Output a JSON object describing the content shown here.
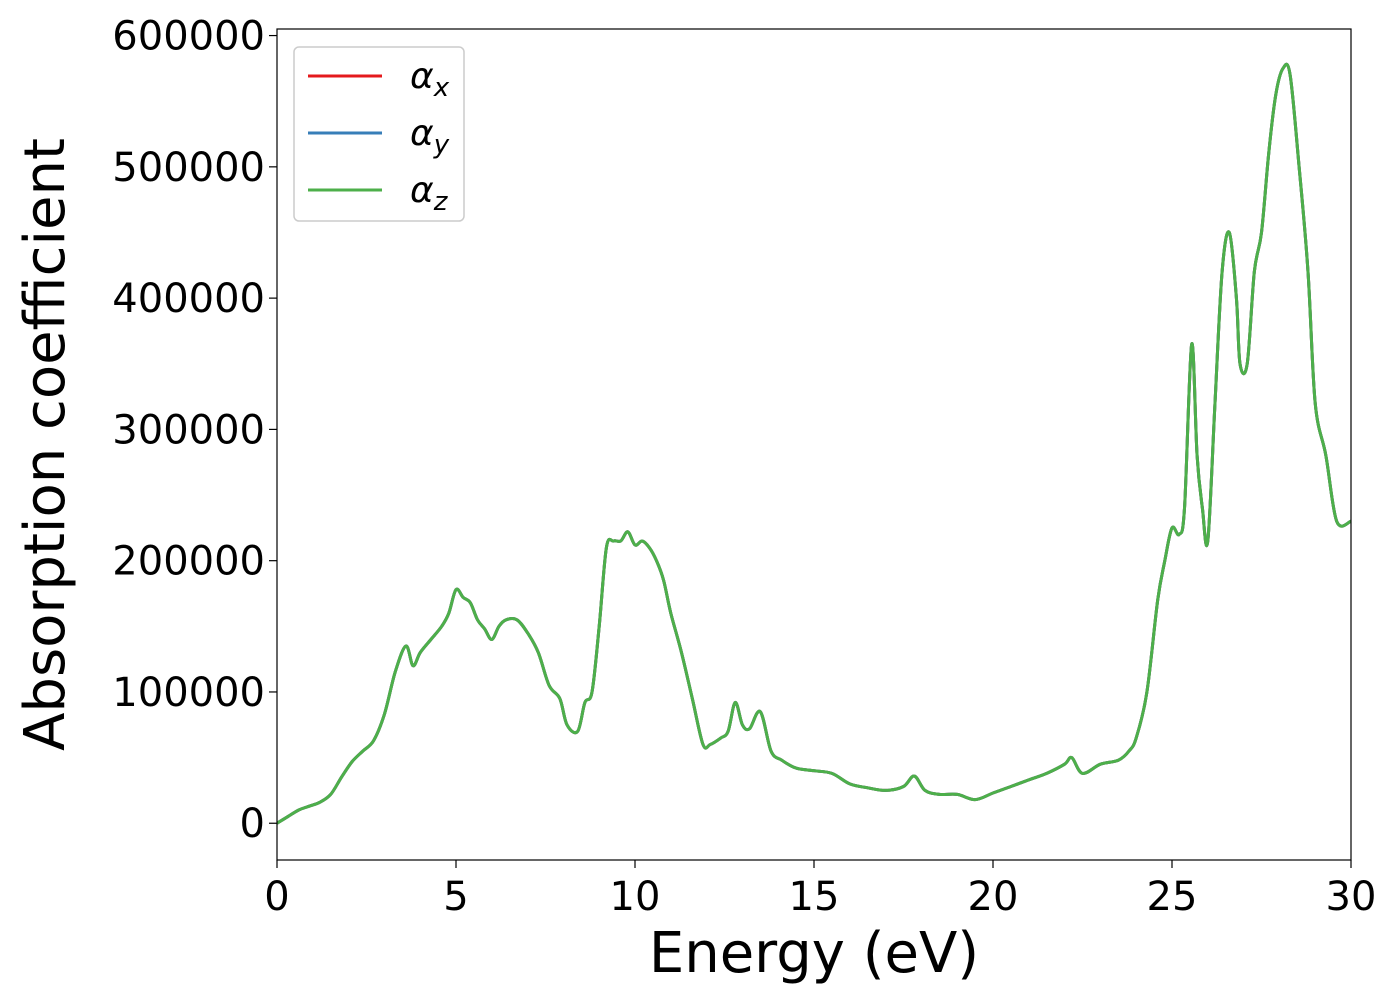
{
  "chart_data": {
    "type": "line",
    "title": "",
    "xlabel": "Energy (eV)",
    "ylabel": "Absorption coefficient",
    "xlim": [
      0,
      30
    ],
    "ylim": [
      -28000,
      605000
    ],
    "xticks": [
      0,
      5,
      10,
      15,
      20,
      25,
      30
    ],
    "yticks": [
      0,
      100000,
      200000,
      300000,
      400000,
      500000,
      600000
    ],
    "grid": false,
    "legend_position": "top-left",
    "series": [
      {
        "name": "α",
        "subscript": "x",
        "color": "#e41a1c"
      },
      {
        "name": "α",
        "subscript": "y",
        "color": "#377eb8"
      },
      {
        "name": "α",
        "subscript": "z",
        "color": "#4daf4a"
      }
    ],
    "x": [
      0,
      0.3,
      0.6,
      0.9,
      1.2,
      1.5,
      1.8,
      2.1,
      2.4,
      2.7,
      3.0,
      3.3,
      3.6,
      3.8,
      4.0,
      4.3,
      4.6,
      4.8,
      5.0,
      5.2,
      5.4,
      5.6,
      5.8,
      6.0,
      6.2,
      6.4,
      6.7,
      7.0,
      7.3,
      7.6,
      7.9,
      8.1,
      8.4,
      8.6,
      8.8,
      9.0,
      9.2,
      9.4,
      9.6,
      9.8,
      10.0,
      10.2,
      10.4,
      10.6,
      10.8,
      11.0,
      11.3,
      11.6,
      11.9,
      12.1,
      12.4,
      12.6,
      12.8,
      13.0,
      13.2,
      13.5,
      13.8,
      14.1,
      14.5,
      15.0,
      15.5,
      16.0,
      16.5,
      17.0,
      17.5,
      17.8,
      18.1,
      18.5,
      19.0,
      19.5,
      20.0,
      20.5,
      21.0,
      21.5,
      22.0,
      22.2,
      22.5,
      23.0,
      23.5,
      23.8,
      24.0,
      24.3,
      24.6,
      24.8,
      25.0,
      25.2,
      25.35,
      25.55,
      25.7,
      25.85,
      26.0,
      26.2,
      26.4,
      26.6,
      26.8,
      26.9,
      27.1,
      27.3,
      27.5,
      27.7,
      27.9,
      28.1,
      28.3,
      28.55,
      28.8,
      29.0,
      29.3,
      29.6,
      30.0
    ],
    "y": [
      0,
      5000,
      10000,
      13000,
      16000,
      22000,
      35000,
      47000,
      55000,
      63000,
      83000,
      115000,
      135000,
      120000,
      130000,
      140000,
      150000,
      160000,
      178000,
      172000,
      168000,
      155000,
      148000,
      140000,
      150000,
      155000,
      155000,
      145000,
      130000,
      105000,
      95000,
      75000,
      70000,
      92000,
      100000,
      150000,
      210000,
      215000,
      215000,
      222000,
      212000,
      215000,
      210000,
      200000,
      185000,
      160000,
      130000,
      95000,
      60000,
      60000,
      65000,
      70000,
      92000,
      75000,
      72000,
      85000,
      55000,
      48000,
      42000,
      40000,
      38000,
      30000,
      27000,
      25000,
      28000,
      36000,
      25000,
      22000,
      22000,
      18000,
      23000,
      28000,
      33000,
      38000,
      45000,
      50000,
      38000,
      45000,
      48000,
      55000,
      65000,
      100000,
      170000,
      200000,
      225000,
      220000,
      240000,
      365000,
      280000,
      240000,
      215000,
      320000,
      420000,
      450000,
      400000,
      350000,
      350000,
      420000,
      450000,
      510000,
      555000,
      575000,
      570000,
      500000,
      420000,
      320000,
      280000,
      230000,
      230000
    ]
  }
}
